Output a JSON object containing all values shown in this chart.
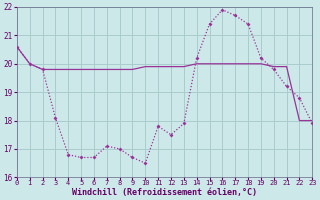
{
  "xlabel": "Windchill (Refroidissement éolien,°C)",
  "background_color": "#cde8e8",
  "grid_color": "#aacccc",
  "line_color": "#993399",
  "label_color": "#660066",
  "x_values": [
    0,
    1,
    2,
    3,
    4,
    5,
    6,
    7,
    8,
    9,
    10,
    11,
    12,
    13,
    14,
    15,
    16,
    17,
    18,
    19,
    20,
    21,
    22,
    23
  ],
  "y_windchill": [
    20.6,
    20.0,
    19.8,
    18.1,
    16.8,
    16.7,
    16.7,
    17.1,
    17.0,
    16.7,
    16.5,
    17.8,
    17.5,
    17.9,
    20.2,
    21.4,
    21.9,
    21.7,
    21.4,
    20.2,
    19.8,
    19.2,
    18.8,
    17.9
  ],
  "y_temp": [
    20.6,
    20.0,
    19.8,
    19.8,
    19.8,
    19.8,
    19.8,
    19.8,
    19.8,
    19.8,
    19.9,
    19.9,
    19.9,
    19.9,
    20.0,
    20.0,
    20.0,
    20.0,
    20.0,
    20.0,
    19.9,
    19.9,
    18.0,
    18.0
  ],
  "ylim": [
    16,
    22
  ],
  "yticks": [
    16,
    17,
    18,
    19,
    20,
    21,
    22
  ],
  "xlim": [
    0,
    23
  ],
  "xticks": [
    0,
    1,
    2,
    3,
    4,
    5,
    6,
    7,
    8,
    9,
    10,
    11,
    12,
    13,
    14,
    15,
    16,
    17,
    18,
    19,
    20,
    21,
    22,
    23
  ]
}
